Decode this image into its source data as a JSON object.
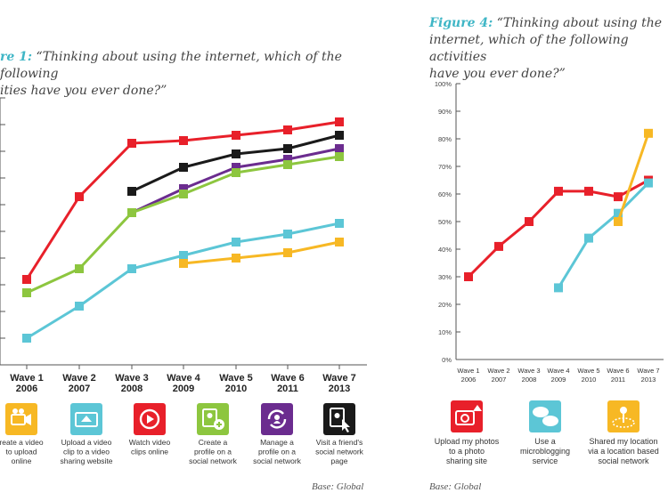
{
  "figure1": {
    "label": "re 1:",
    "title_line1": "“Thinking about using the internet, which of the following",
    "title_line2": "ities have you ever done?”",
    "base": "Base: Global",
    "chart_data": {
      "type": "line",
      "x": [
        "Wave 1 2006",
        "Wave 2 2007",
        "Wave 3 2008",
        "Wave 4 2009",
        "Wave 5 2010",
        "Wave 6 2011",
        "Wave 7 2013"
      ],
      "ylim": [
        0,
        100
      ],
      "series": [
        {
          "color": "#e8202a",
          "values": [
            32,
            63,
            83,
            84,
            86,
            88,
            91
          ]
        },
        {
          "color": "#1a1a1a",
          "values": [
            null,
            null,
            65,
            74,
            79,
            81,
            86
          ]
        },
        {
          "color": "#6b2c8f",
          "values": [
            null,
            null,
            57,
            66,
            74,
            77,
            81
          ]
        },
        {
          "color": "#8dc63f",
          "values": [
            27,
            36,
            57,
            64,
            72,
            75,
            78
          ]
        },
        {
          "color": "#5cc6d6",
          "values": [
            10,
            22,
            36,
            41,
            46,
            49,
            53
          ]
        },
        {
          "color": "#f7b824",
          "values": [
            null,
            null,
            null,
            38,
            40,
            42,
            46
          ]
        }
      ],
      "xticks": [
        {
          "line1": "Wave 1",
          "line2": "2006"
        },
        {
          "line1": "Wave 2",
          "line2": "2007"
        },
        {
          "line1": "Wave 3",
          "line2": "2008"
        },
        {
          "line1": "Wave 4",
          "line2": "2009"
        },
        {
          "line1": "Wave 5",
          "line2": "2010"
        },
        {
          "line1": "Wave 6",
          "line2": "2011"
        },
        {
          "line1": "Wave 7",
          "line2": "2013"
        }
      ],
      "legend": [
        {
          "icon": "video-camera-icon",
          "color": "#f7b824",
          "lines": [
            "reate a video",
            "to upload",
            "online"
          ]
        },
        {
          "icon": "video-upload-icon",
          "color": "#5cc6d6",
          "lines": [
            "Upload a video",
            "clip to a video",
            "sharing website"
          ]
        },
        {
          "icon": "play-button-icon",
          "color": "#e8202a",
          "lines": [
            "Watch video",
            "clips online"
          ]
        },
        {
          "icon": "add-profile-icon",
          "color": "#8dc63f",
          "lines": [
            "Create a",
            "profile on a",
            "social network"
          ]
        },
        {
          "icon": "manage-profile-icon",
          "color": "#6b2c8f",
          "lines": [
            "Manage a",
            "profile on a",
            "social network"
          ]
        },
        {
          "icon": "visit-page-icon",
          "color": "#1a1a1a",
          "lines": [
            "Visit a friend's",
            "social network",
            "page"
          ]
        }
      ]
    }
  },
  "figure4": {
    "label": "Figure 4:",
    "title_line1": "“Thinking about using the",
    "title_line2": "internet, which of the following activities",
    "title_line3": "have you ever done?”",
    "base": "Base: Global",
    "chart_data": {
      "type": "line",
      "x": [
        "Wave 1 2006",
        "Wave 2 2007",
        "Wave 3 2008",
        "Wave 4 2009",
        "Wave 5 2010",
        "Wave 6 2011",
        "Wave 7 2013"
      ],
      "ylim": [
        0,
        100
      ],
      "yticks": [
        "0%",
        "10%",
        "20%",
        "30%",
        "40%",
        "50%",
        "60%",
        "70%",
        "80%",
        "90%",
        "100%"
      ],
      "series": [
        {
          "color": "#e8202a",
          "values": [
            30,
            41,
            50,
            61,
            61,
            59,
            65
          ]
        },
        {
          "color": "#5cc6d6",
          "values": [
            null,
            null,
            null,
            26,
            44,
            53,
            64
          ]
        },
        {
          "color": "#f7b824",
          "values": [
            null,
            null,
            null,
            null,
            null,
            50,
            82
          ]
        }
      ],
      "xticks": [
        {
          "line1": "Wave 1",
          "line2": "2006"
        },
        {
          "line1": "Wave 2",
          "line2": "2007"
        },
        {
          "line1": "Wave 3",
          "line2": "2008"
        },
        {
          "line1": "Wave 4",
          "line2": "2009"
        },
        {
          "line1": "Wave 5",
          "line2": "2010"
        },
        {
          "line1": "Wave 6",
          "line2": "2011"
        },
        {
          "line1": "Wave 7",
          "line2": "2013"
        }
      ],
      "legend": [
        {
          "icon": "photo-upload-icon",
          "color": "#e8202a",
          "lines": [
            "Upload my photos",
            "to a photo",
            "sharing site"
          ]
        },
        {
          "icon": "microblog-icon",
          "color": "#5cc6d6",
          "lines": [
            "Use a",
            "microblogging",
            "service"
          ]
        },
        {
          "icon": "location-icon",
          "color": "#f7b824",
          "lines": [
            "Shared my location",
            "via a location based",
            "social network"
          ]
        }
      ]
    }
  }
}
